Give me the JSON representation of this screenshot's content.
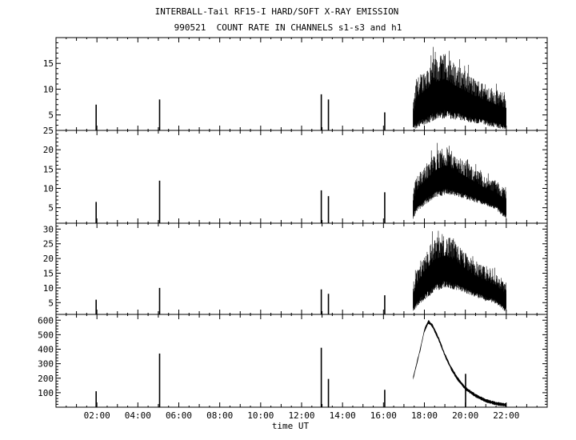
{
  "header": {
    "title": "INTERBALL-Tail RF15-I HARD/SOFT X-RAY EMISSION",
    "subtitle": "990521  COUNT RATE IN CHANNELS s1-s3 and h1"
  },
  "chart_data": {
    "type": "line",
    "xlabel": "time UT",
    "x_range_hours": [
      0,
      24
    ],
    "x_tick_labels": [
      "02:00",
      "04:00",
      "06:00",
      "08:00",
      "10:00",
      "12:00",
      "14:00",
      "16:00",
      "18:00",
      "20:00",
      "22:00"
    ],
    "x_tick_hours": [
      2,
      4,
      6,
      8,
      10,
      12,
      14,
      16,
      18,
      20,
      22
    ],
    "panels": [
      {
        "channel": "s1",
        "ylim": [
          2,
          20
        ],
        "y_ticks": [
          5,
          10,
          15
        ],
        "spikes": [
          [
            1.95,
            7
          ],
          [
            5.05,
            8
          ],
          [
            12.95,
            9
          ],
          [
            13.3,
            8
          ],
          [
            16.05,
            5.5
          ]
        ],
        "data_gap_hours": [
          17.45,
          22.0
        ],
        "envelope_x": [
          17.45,
          17.6,
          18.0,
          18.5,
          19.0,
          19.5,
          20.0,
          20.5,
          21.0,
          21.5,
          22.0
        ],
        "envelope_upper": [
          7,
          12,
          14,
          16,
          17,
          15,
          13.5,
          12,
          11,
          10,
          9
        ],
        "envelope_lower": [
          3,
          3.5,
          4.5,
          5.5,
          6,
          5.5,
          5,
          4.5,
          4,
          3.5,
          3
        ]
      },
      {
        "channel": "s2",
        "ylim": [
          1,
          25
        ],
        "y_ticks": [
          5,
          10,
          15,
          20,
          25
        ],
        "spikes": [
          [
            1.95,
            6.5
          ],
          [
            5.05,
            12
          ],
          [
            12.95,
            9.5
          ],
          [
            13.3,
            8
          ],
          [
            16.05,
            9
          ]
        ],
        "envelope_x": [
          17.45,
          17.6,
          18.0,
          18.5,
          19.0,
          19.5,
          20.0,
          20.5,
          21.0,
          21.5,
          22.0
        ],
        "envelope_upper": [
          10,
          13,
          16,
          19,
          21,
          19,
          17,
          15,
          13,
          12,
          10
        ],
        "envelope_lower": [
          3,
          5,
          7,
          9,
          10,
          9.5,
          8.5,
          7.5,
          6.5,
          5.5,
          3
        ]
      },
      {
        "channel": "s3",
        "ylim": [
          1,
          32
        ],
        "y_ticks": [
          5,
          10,
          15,
          20,
          25,
          30
        ],
        "spikes": [
          [
            1.95,
            6
          ],
          [
            5.05,
            10
          ],
          [
            12.95,
            9.5
          ],
          [
            13.3,
            8
          ],
          [
            16.05,
            7.5
          ]
        ],
        "envelope_x": [
          17.45,
          17.6,
          18.0,
          18.5,
          19.0,
          19.5,
          20.0,
          20.5,
          21.0,
          21.5,
          22.0
        ],
        "envelope_upper": [
          12,
          16,
          22,
          27,
          28,
          26,
          22,
          19,
          17,
          15,
          12
        ],
        "envelope_lower": [
          3,
          5,
          8,
          11,
          12.5,
          11.5,
          10,
          8.5,
          7,
          6,
          3
        ]
      },
      {
        "channel": "h1",
        "ylim": [
          0,
          640
        ],
        "y_ticks": [
          100,
          200,
          300,
          400,
          500,
          600
        ],
        "spikes": [
          [
            1.95,
            110
          ],
          [
            5.05,
            370
          ],
          [
            12.95,
            410
          ],
          [
            13.3,
            195
          ],
          [
            16.05,
            120
          ],
          [
            20.0,
            230
          ]
        ],
        "curve_x": [
          17.45,
          17.8,
          18.0,
          18.2,
          18.4,
          18.7,
          19.0,
          19.3,
          19.6,
          20.0,
          20.5,
          21.0,
          21.5,
          22.0
        ],
        "curve_y": [
          200,
          400,
          530,
          590,
          560,
          470,
          360,
          270,
          200,
          130,
          80,
          45,
          25,
          15
        ],
        "curve_band": 14
      }
    ]
  }
}
